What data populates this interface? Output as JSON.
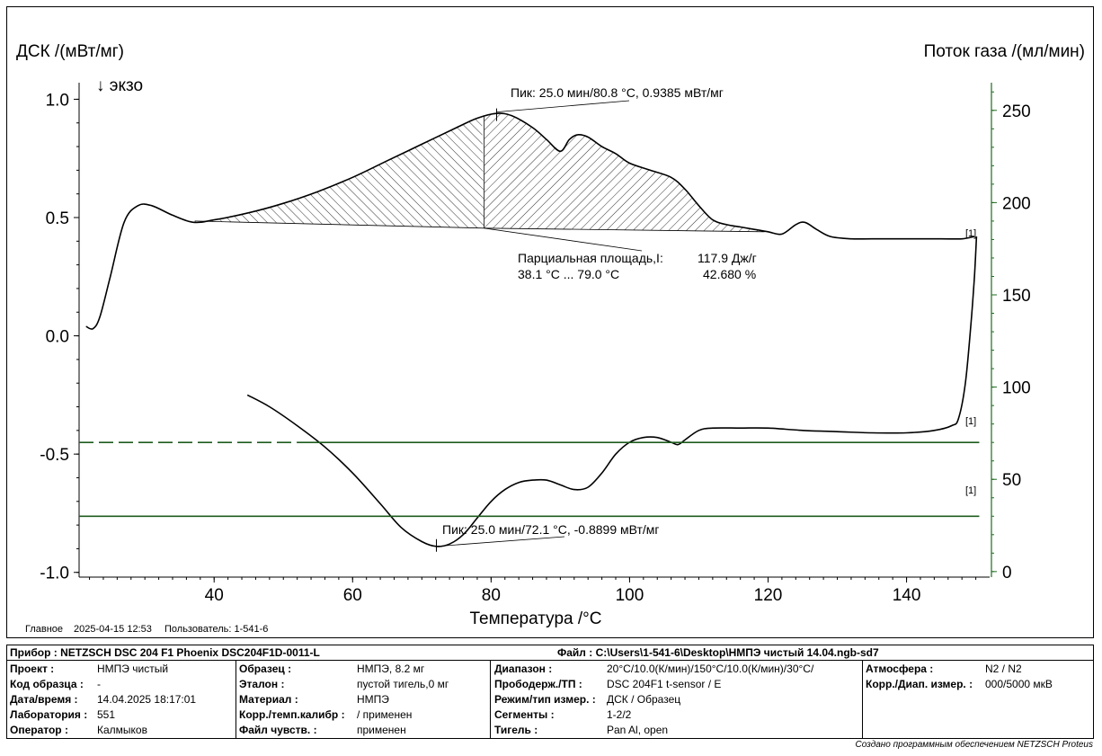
{
  "chart_data": {
    "type": "line",
    "xlabel": "Температура /°C",
    "ylabel_left": "ДСК /(мВт/мг)",
    "ylabel_right": "Поток газа /(мл/мин)",
    "exo_label": "↓ экзо",
    "x_range": [
      20.5,
      152
    ],
    "y_left_range": [
      -1.02,
      1.07
    ],
    "y_right_range": [
      -3,
      265
    ],
    "x_ticks": [
      40,
      60,
      80,
      100,
      120,
      140
    ],
    "y_left_ticks": [
      {
        "value": 1.0,
        "label": "1.0"
      },
      {
        "value": 0.5,
        "label": "0.5"
      },
      {
        "value": 0.0,
        "label": "0.0"
      },
      {
        "value": -0.5,
        "label": "-0.5"
      },
      {
        "value": -1.0,
        "label": "-1.0"
      }
    ],
    "y_right_ticks": [
      0,
      50,
      100,
      150,
      200,
      250
    ],
    "series": [
      {
        "name": "heating_dsc",
        "axis": "left",
        "color": "#000000",
        "points": [
          [
            21.5,
            0.04
          ],
          [
            22.5,
            0.03
          ],
          [
            23.5,
            0.08
          ],
          [
            25,
            0.25
          ],
          [
            27,
            0.48
          ],
          [
            29,
            0.55
          ],
          [
            31,
            0.55
          ],
          [
            34,
            0.51
          ],
          [
            37,
            0.48
          ],
          [
            40,
            0.49
          ],
          [
            45,
            0.52
          ],
          [
            50,
            0.56
          ],
          [
            55,
            0.61
          ],
          [
            60,
            0.67
          ],
          [
            65,
            0.74
          ],
          [
            70,
            0.81
          ],
          [
            75,
            0.88
          ],
          [
            78,
            0.92
          ],
          [
            80.8,
            0.94
          ],
          [
            83,
            0.93
          ],
          [
            86,
            0.88
          ],
          [
            88,
            0.83
          ],
          [
            90,
            0.78
          ],
          [
            91.3,
            0.83
          ],
          [
            92.5,
            0.85
          ],
          [
            94,
            0.84
          ],
          [
            96,
            0.8
          ],
          [
            98,
            0.77
          ],
          [
            100,
            0.73
          ],
          [
            103,
            0.7
          ],
          [
            106,
            0.67
          ],
          [
            108,
            0.62
          ],
          [
            110,
            0.55
          ],
          [
            112,
            0.49
          ],
          [
            114,
            0.47
          ],
          [
            116,
            0.46
          ],
          [
            118,
            0.45
          ],
          [
            120,
            0.44
          ],
          [
            122,
            0.43
          ],
          [
            124,
            0.47
          ],
          [
            125.3,
            0.48
          ],
          [
            127,
            0.45
          ],
          [
            129,
            0.42
          ],
          [
            132,
            0.41
          ],
          [
            135,
            0.41
          ],
          [
            140,
            0.41
          ],
          [
            145,
            0.41
          ],
          [
            148,
            0.41
          ],
          [
            149.8,
            0.42
          ]
        ]
      },
      {
        "name": "cooling_dsc",
        "axis": "left",
        "color": "#000000",
        "points": [
          [
            44.8,
            -0.25
          ],
          [
            48,
            -0.3
          ],
          [
            52,
            -0.38
          ],
          [
            56,
            -0.47
          ],
          [
            60,
            -0.58
          ],
          [
            64,
            -0.71
          ],
          [
            67,
            -0.81
          ],
          [
            70,
            -0.87
          ],
          [
            72.1,
            -0.89
          ],
          [
            74,
            -0.88
          ],
          [
            76,
            -0.84
          ],
          [
            78,
            -0.77
          ],
          [
            80,
            -0.7
          ],
          [
            82,
            -0.65
          ],
          [
            84,
            -0.62
          ],
          [
            86,
            -0.61
          ],
          [
            88,
            -0.61
          ],
          [
            90,
            -0.63
          ],
          [
            92,
            -0.65
          ],
          [
            94,
            -0.64
          ],
          [
            96,
            -0.58
          ],
          [
            98,
            -0.5
          ],
          [
            100,
            -0.45
          ],
          [
            102,
            -0.43
          ],
          [
            104,
            -0.43
          ],
          [
            106,
            -0.45
          ],
          [
            107,
            -0.46
          ],
          [
            108,
            -0.44
          ],
          [
            110,
            -0.4
          ],
          [
            112,
            -0.39
          ],
          [
            116,
            -0.39
          ],
          [
            120,
            -0.39
          ],
          [
            125,
            -0.4
          ],
          [
            130,
            -0.405
          ],
          [
            135,
            -0.41
          ],
          [
            140,
            -0.41
          ],
          [
            144,
            -0.4
          ],
          [
            146.5,
            -0.38
          ],
          [
            147.5,
            -0.35
          ],
          [
            148.5,
            -0.2
          ],
          [
            149.3,
            0.05
          ],
          [
            149.8,
            0.25
          ],
          [
            150.1,
            0.42
          ]
        ]
      },
      {
        "name": "gas_flow_1",
        "axis": "right",
        "color": "#1f5c1f",
        "dash": "16,6",
        "x_dash_end": 52,
        "points": [
          [
            20.5,
            70
          ],
          [
            150.5,
            70
          ]
        ]
      },
      {
        "name": "gas_flow_2",
        "axis": "right",
        "color": "#1f5c1f",
        "points": [
          [
            20.5,
            30
          ],
          [
            150.5,
            30
          ]
        ]
      }
    ],
    "annotations": {
      "peak_heating": "Пик: 25.0 мин/80.8 °C, 0.9385 мВт/мг",
      "peak_cooling": "Пик: 25.0 мин/72.1 °C, -0.8899 мВт/мг",
      "partial_area_label": "Парциальная площадь,I:",
      "partial_area_value": "117.9 Дж/г",
      "partial_area_range": "38.1 °C ... 79.0 °C",
      "partial_area_percent": "42.680 %",
      "curve_tags": [
        "[1]",
        "[1]",
        "[1]"
      ],
      "area_from": 37.2,
      "area_split": 79.0,
      "area_to": 119.5,
      "area_baseline": [
        [
          37.2,
          0.485
        ],
        [
          79.0,
          0.455
        ],
        [
          119.5,
          0.44
        ]
      ]
    }
  },
  "footer": {
    "main_label": "Главное",
    "datetime": "2025-04-15 12:53",
    "user_label": "Пользователь: 1-541-6"
  },
  "info": {
    "instrument": "Прибор :  NETZSCH DSC 204 F1 Phoenix DSC204F1D-0011-L",
    "file": "Файл :  C:\\Users\\1-541-6\\Desktop\\НМПЭ чистый 14.04.ngb-sd7",
    "col1": [
      {
        "label": "Проект :",
        "value": "НМПЭ чистый"
      },
      {
        "label": "Код образца :",
        "value": "-"
      },
      {
        "label": "Дата/время :",
        "value": "14.04.2025 18:17:01"
      },
      {
        "label": "Лаборатория :",
        "value": "551"
      },
      {
        "label": "Оператор :",
        "value": "Калмыков"
      }
    ],
    "col2": [
      {
        "label": "Образец :",
        "value": "НМПЭ, 8.2 мг"
      },
      {
        "label": "Эталон :",
        "value": "пустой тигель,0 мг"
      },
      {
        "label": "Материал :",
        "value": "НМПЭ"
      },
      {
        "label": "Корр./темп.калибр :",
        "value": " / применен"
      },
      {
        "label": "Файл чувств. :",
        "value": "применен"
      }
    ],
    "col3": [
      {
        "label": "Диапазон :",
        "value": "20°C/10.0(К/мин)/150°C/10.0(К/мин)/30°C/"
      },
      {
        "label": "Прободерж./ТП :",
        "value": "DSC 204F1 t-sensor / E"
      },
      {
        "label": "Режим/тип измер. :",
        "value": "ДСК / Образец"
      },
      {
        "label": "Сегменты :",
        "value": "1-2/2"
      },
      {
        "label": "Тигель :",
        "value": "Pan Al, open"
      }
    ],
    "col4": [
      {
        "label": "Атмосфера :",
        "value": "N2 / N2"
      },
      {
        "label": "Корр./Диап. измер. :",
        "value": "000/5000 мкВ"
      }
    ]
  },
  "credit": "Создано программным обеспечением NETZSCH Proteus"
}
